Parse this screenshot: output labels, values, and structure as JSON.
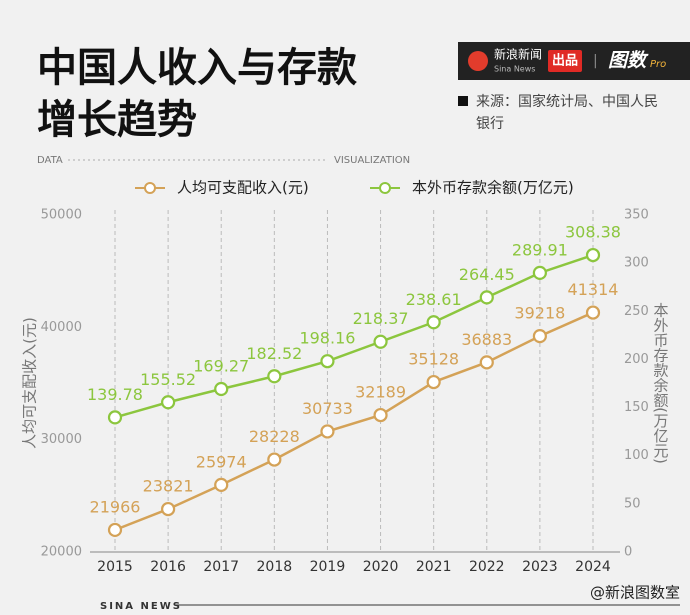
{
  "header": {
    "logo_cn": "新浪新闻",
    "logo_en": "Sina News",
    "badge": "出品",
    "brand": "图数",
    "brand_tag": "Pro",
    "source": [
      "来源：国家统计局、中国人民",
      "银行"
    ],
    "left_tag": "DATA",
    "right_tag": "VISUALIZATION"
  },
  "footer": {
    "brand": "SINA NEWS",
    "watermark": "@新浪图数室"
  },
  "chart_data": {
    "type": "line",
    "title": [
      "中国人收入与存款",
      "增长趋势"
    ],
    "categories": [
      "2015",
      "2016",
      "2017",
      "2018",
      "2019",
      "2020",
      "2021",
      "2022",
      "2023",
      "2024"
    ],
    "series": [
      {
        "name": "人均可支配收入(元)",
        "color": "#d4a257",
        "values": [
          21966,
          23821,
          25974,
          28228,
          30733,
          32189,
          35128,
          36883,
          39218,
          41314
        ]
      },
      {
        "name": "本外币存款余额(万亿元)",
        "color": "#8cc63e",
        "axis": "y2",
        "values": [
          139.78,
          155.52,
          169.27,
          182.52,
          198.16,
          218.37,
          238.61,
          264.45,
          289.91,
          308.38
        ]
      }
    ],
    "ylabel": "人均可支配收入(元)",
    "y2label": "本外币存款余额(万亿元)",
    "ylim": [
      20000,
      50000
    ],
    "yticks": [
      20000,
      30000,
      40000,
      50000
    ],
    "y2lim": [
      0,
      350
    ],
    "y2ticks": [
      0,
      50,
      100,
      150,
      200,
      250,
      300,
      350
    ],
    "grid": true
  }
}
